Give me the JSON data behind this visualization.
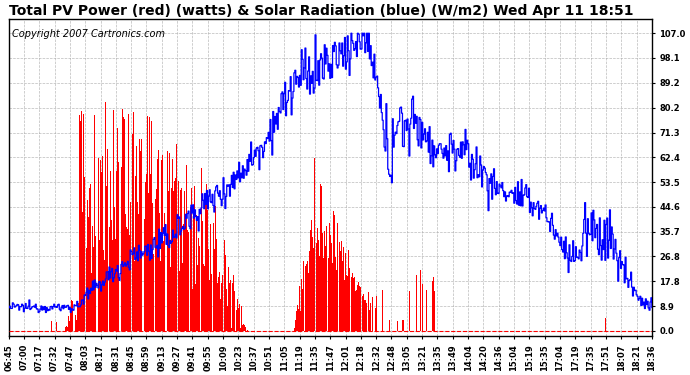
{
  "title": "Total PV Power (red) (watts) & Solar Radiation (blue) (W/m2) Wed Apr 11 18:51",
  "copyright": "Copyright 2007 Cartronics.com",
  "yticks_right": [
    0.0,
    8.9,
    17.8,
    26.8,
    35.7,
    44.6,
    53.5,
    62.4,
    71.3,
    80.2,
    89.2,
    98.1,
    107.0
  ],
  "xtick_labels": [
    "06:45",
    "07:00",
    "07:17",
    "07:32",
    "07:47",
    "08:03",
    "08:17",
    "08:31",
    "08:45",
    "08:59",
    "09:13",
    "09:27",
    "09:41",
    "09:55",
    "10:09",
    "10:23",
    "10:37",
    "10:51",
    "11:05",
    "11:19",
    "11:35",
    "11:47",
    "12:01",
    "12:18",
    "12:32",
    "12:48",
    "13:05",
    "13:21",
    "13:35",
    "13:49",
    "14:04",
    "14:20",
    "14:36",
    "15:04",
    "15:19",
    "15:35",
    "17:04",
    "17:19",
    "17:35",
    "17:51",
    "18:07",
    "18:21",
    "18:36"
  ],
  "bg_color": "#ffffff",
  "plot_bg_color": "#ffffff",
  "grid_color": "#aaaaaa",
  "red_color": "#ff0000",
  "blue_color": "#0000ff",
  "dashed_line_color": "#ff0000",
  "title_fontsize": 10,
  "tick_fontsize": 6,
  "copyright_fontsize": 7,
  "ylim": [
    -2,
    112
  ]
}
